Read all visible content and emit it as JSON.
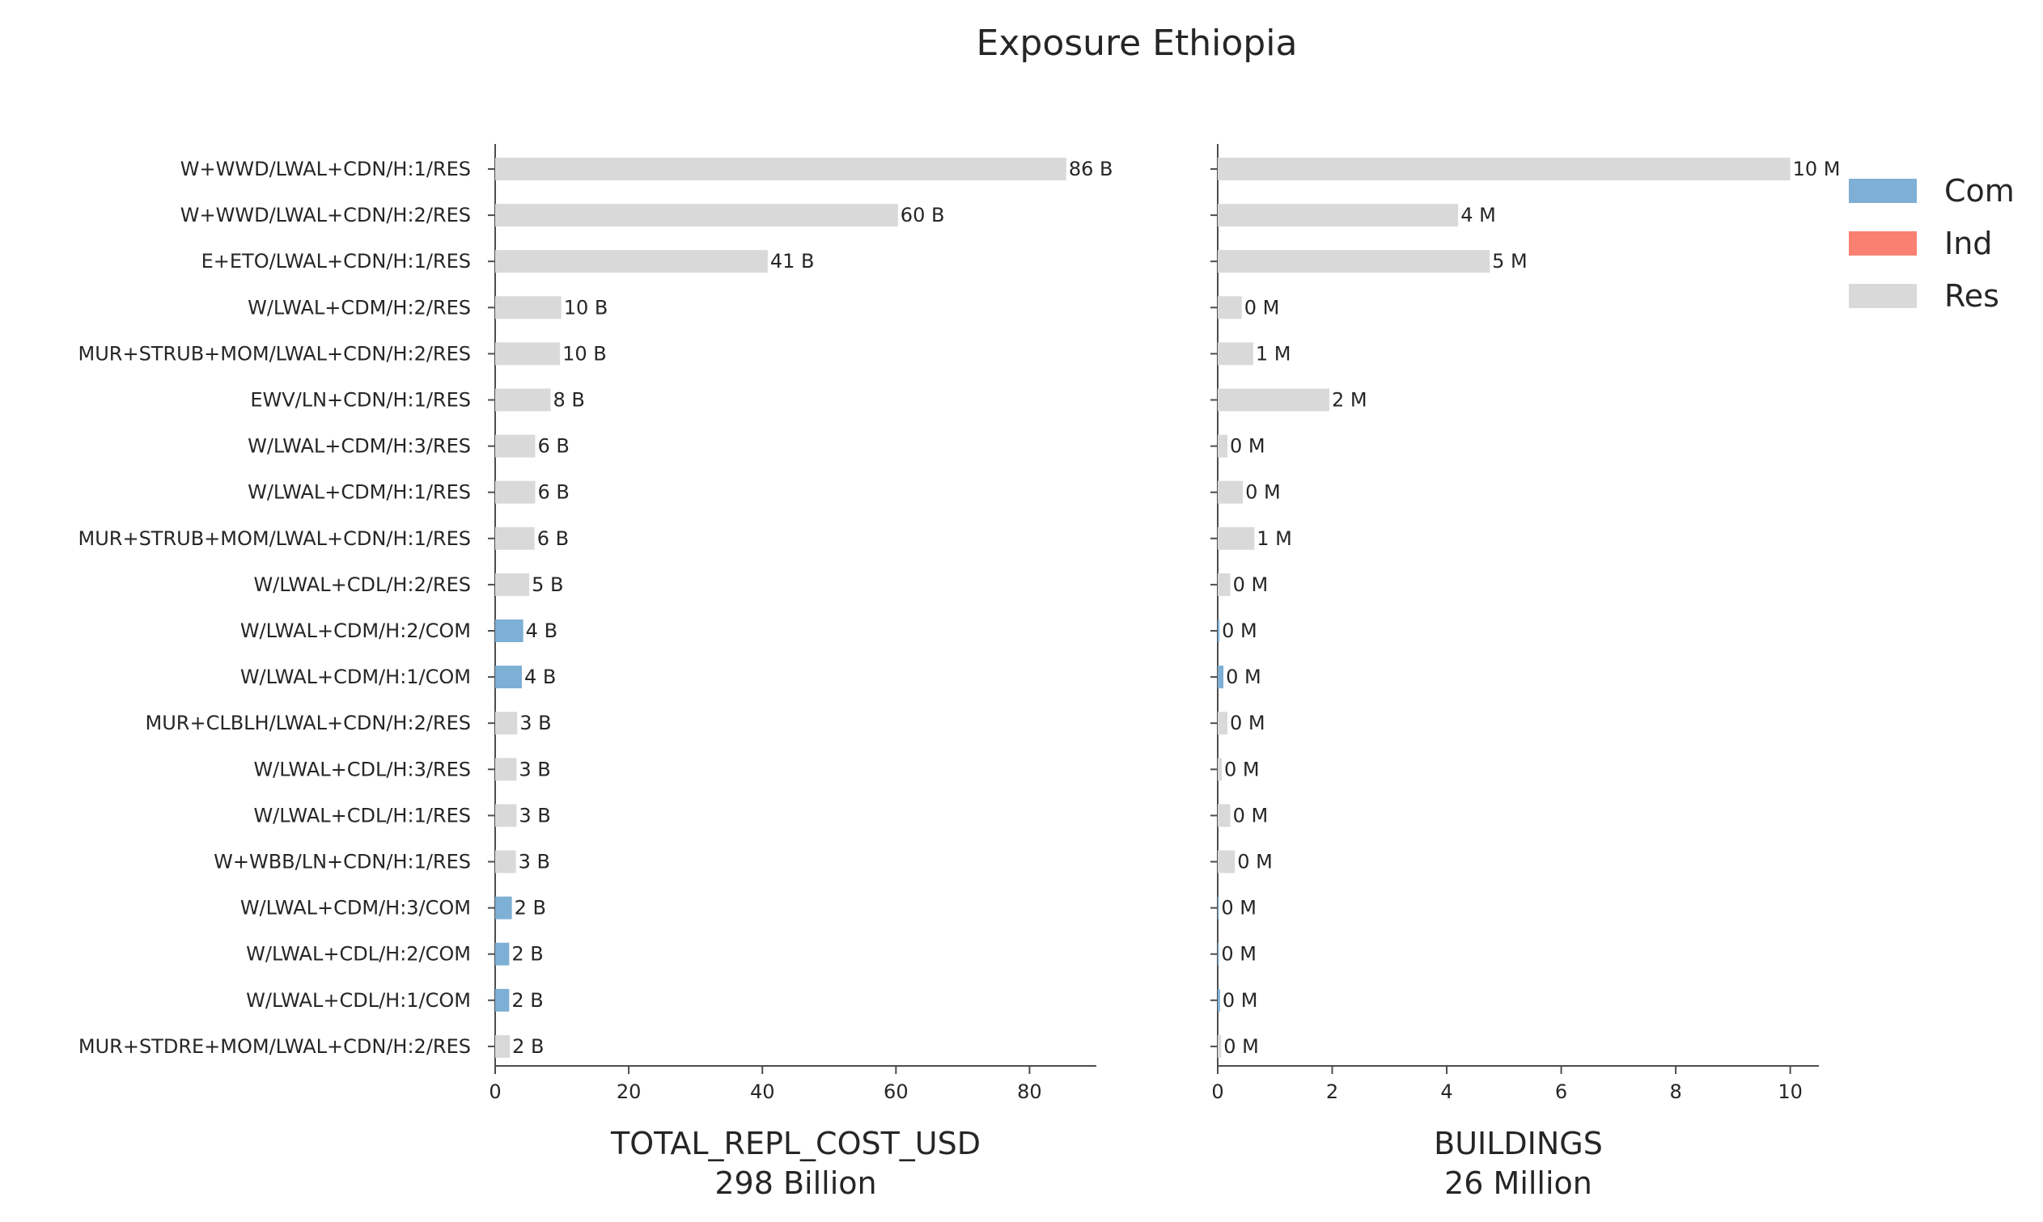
{
  "title": "Exposure Ethiopia",
  "legend": {
    "items": [
      {
        "label": "Com",
        "color": "#7eafd4"
      },
      {
        "label": "Ind",
        "color": "#fa8072"
      },
      {
        "label": "Res",
        "color": "#d9d9d9"
      }
    ]
  },
  "chart_data": {
    "type": "bar",
    "orientation": "horizontal",
    "categories": [
      "W+WWD/LWAL+CDN/H:1/RES",
      "W+WWD/LWAL+CDN/H:2/RES",
      "E+ETO/LWAL+CDN/H:1/RES",
      "W/LWAL+CDM/H:2/RES",
      "MUR+STRUB+MOM/LWAL+CDN/H:2/RES",
      "EWV/LN+CDN/H:1/RES",
      "W/LWAL+CDM/H:3/RES",
      "W/LWAL+CDM/H:1/RES",
      "MUR+STRUB+MOM/LWAL+CDN/H:1/RES",
      "W/LWAL+CDL/H:2/RES",
      "W/LWAL+CDM/H:2/COM",
      "W/LWAL+CDM/H:1/COM",
      "MUR+CLBLH/LWAL+CDN/H:2/RES",
      "W/LWAL+CDL/H:3/RES",
      "W/LWAL+CDL/H:1/RES",
      "W+WBB/LN+CDN/H:1/RES",
      "W/LWAL+CDM/H:3/COM",
      "W/LWAL+CDL/H:2/COM",
      "W/LWAL+CDL/H:1/COM",
      "MUR+STDRE+MOM/LWAL+CDN/H:2/RES"
    ],
    "occupancy": [
      "Res",
      "Res",
      "Res",
      "Res",
      "Res",
      "Res",
      "Res",
      "Res",
      "Res",
      "Res",
      "Com",
      "Com",
      "Res",
      "Res",
      "Res",
      "Res",
      "Com",
      "Com",
      "Com",
      "Res"
    ],
    "panels": [
      {
        "xlabel": "TOTAL_REPL_COST_USD",
        "subtitle": "298 Billion",
        "xlim": [
          0,
          90
        ],
        "xticks": [
          "0",
          "20",
          "40",
          "60",
          "80"
        ],
        "xtick_values": [
          0,
          20,
          40,
          60,
          80
        ],
        "values": [
          85.5,
          60.3,
          40.8,
          9.9,
          9.7,
          8.3,
          6.0,
          6.0,
          5.9,
          5.1,
          4.2,
          4.0,
          3.3,
          3.2,
          3.2,
          3.1,
          2.5,
          2.1,
          2.1,
          2.2
        ],
        "data_labels": [
          "86 B",
          "60 B",
          "41 B",
          "10 B",
          "10 B",
          "8 B",
          "6 B",
          "6 B",
          "6 B",
          "5 B",
          "4 B",
          "4 B",
          "3 B",
          "3 B",
          "3 B",
          "3 B",
          "2 B",
          "2 B",
          "2 B",
          "2 B"
        ]
      },
      {
        "xlabel": "BUILDINGS",
        "subtitle": "26 Million",
        "xlim": [
          0,
          10.5
        ],
        "xticks": [
          "0",
          "2",
          "4",
          "6",
          "8",
          "10"
        ],
        "xtick_values": [
          0,
          2,
          4,
          6,
          8,
          10
        ],
        "values": [
          10.0,
          4.2,
          4.75,
          0.42,
          0.62,
          1.95,
          0.17,
          0.44,
          0.64,
          0.22,
          0.03,
          0.1,
          0.17,
          0.07,
          0.22,
          0.3,
          0.02,
          0.02,
          0.04,
          0.06
        ],
        "data_labels": [
          "10 M",
          "4 M",
          "5 M",
          "0 M",
          "1 M",
          "2 M",
          "0 M",
          "0 M",
          "1 M",
          "0 M",
          "0 M",
          "0 M",
          "0 M",
          "0 M",
          "0 M",
          "0 M",
          "0 M",
          "0 M",
          "0 M",
          "0 M"
        ]
      }
    ],
    "grid": false,
    "legend_position": "top-right"
  }
}
